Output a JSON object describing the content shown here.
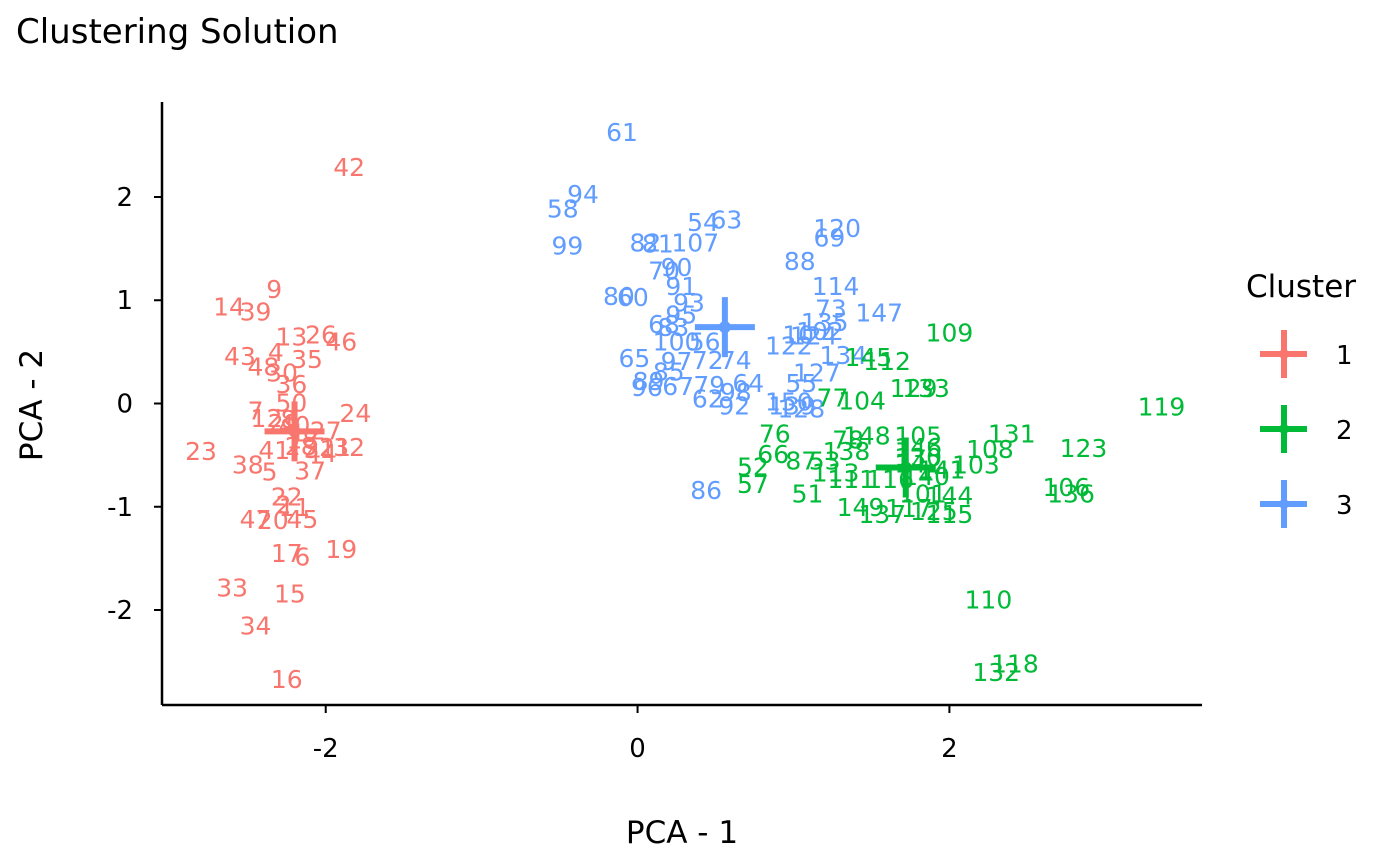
{
  "chart_data": {
    "type": "scatter",
    "title": "Clustering Solution",
    "xlabel": "PCA - 1",
    "ylabel": "PCA - 2",
    "xlim": [
      -3.05,
      3.62
    ],
    "ylim": [
      -2.92,
      2.92
    ],
    "xticks": [
      -2,
      0,
      2
    ],
    "yticks": [
      -2,
      -1,
      0,
      1,
      2
    ],
    "xtick_labels": [
      "-2",
      "0",
      "2"
    ],
    "ytick_labels": [
      "-2",
      "-1",
      "0",
      "1",
      "2"
    ],
    "grid": false,
    "legend": {
      "title": "Cluster",
      "position": "right",
      "entries": [
        "1",
        "2",
        "3"
      ]
    },
    "colors": {
      "1": "#F8766D",
      "2": "#00BA38",
      "3": "#619CFF"
    },
    "centroids": [
      {
        "cluster": "1",
        "x": -2.2,
        "y": -0.27
      },
      {
        "cluster": "2",
        "x": 1.72,
        "y": -0.62
      },
      {
        "cluster": "3",
        "x": 0.56,
        "y": 0.74
      }
    ],
    "points": [
      {
        "label": "42",
        "x": -1.85,
        "y": 2.29,
        "cluster": "1"
      },
      {
        "label": "9",
        "x": -2.33,
        "y": 1.11,
        "cluster": "1"
      },
      {
        "label": "14",
        "x": -2.62,
        "y": 0.94,
        "cluster": "1"
      },
      {
        "label": "39",
        "x": -2.45,
        "y": 0.89,
        "cluster": "1"
      },
      {
        "label": "13",
        "x": -2.22,
        "y": 0.65,
        "cluster": "1"
      },
      {
        "label": "26",
        "x": -2.03,
        "y": 0.67,
        "cluster": "1"
      },
      {
        "label": "46",
        "x": -1.9,
        "y": 0.6,
        "cluster": "1"
      },
      {
        "label": "43",
        "x": -2.55,
        "y": 0.46,
        "cluster": "1"
      },
      {
        "label": "4",
        "x": -2.32,
        "y": 0.5,
        "cluster": "1"
      },
      {
        "label": "35",
        "x": -2.12,
        "y": 0.43,
        "cluster": "1"
      },
      {
        "label": "48",
        "x": -2.4,
        "y": 0.36,
        "cluster": "1"
      },
      {
        "label": "30",
        "x": -2.28,
        "y": 0.3,
        "cluster": "1"
      },
      {
        "label": "36",
        "x": -2.22,
        "y": 0.19,
        "cluster": "1"
      },
      {
        "label": "7",
        "x": -2.45,
        "y": -0.07,
        "cluster": "1"
      },
      {
        "label": "50",
        "x": -2.22,
        "y": 0.01,
        "cluster": "1"
      },
      {
        "label": "24",
        "x": -1.81,
        "y": -0.09,
        "cluster": "1"
      },
      {
        "label": "12",
        "x": -2.38,
        "y": -0.14,
        "cluster": "1"
      },
      {
        "label": "8",
        "x": -2.24,
        "y": -0.15,
        "cluster": "1"
      },
      {
        "label": "40",
        "x": -2.2,
        "y": -0.21,
        "cluster": "1"
      },
      {
        "label": "29",
        "x": -2.27,
        "y": -0.19,
        "cluster": "1"
      },
      {
        "label": "27",
        "x": -2.0,
        "y": -0.26,
        "cluster": "1"
      },
      {
        "label": "1",
        "x": -2.18,
        "y": -0.28,
        "cluster": "1"
      },
      {
        "label": "18",
        "x": -2.15,
        "y": -0.35,
        "cluster": "1"
      },
      {
        "label": "28",
        "x": -2.16,
        "y": -0.41,
        "cluster": "1"
      },
      {
        "label": "41",
        "x": -2.33,
        "y": -0.45,
        "cluster": "1"
      },
      {
        "label": "31",
        "x": -2.04,
        "y": -0.44,
        "cluster": "1"
      },
      {
        "label": "21",
        "x": -1.94,
        "y": -0.42,
        "cluster": "1"
      },
      {
        "label": "32",
        "x": -1.85,
        "y": -0.42,
        "cluster": "1"
      },
      {
        "label": "44",
        "x": -2.03,
        "y": -0.48,
        "cluster": "1"
      },
      {
        "label": "23",
        "x": -2.8,
        "y": -0.46,
        "cluster": "1"
      },
      {
        "label": "38",
        "x": -2.5,
        "y": -0.59,
        "cluster": "1"
      },
      {
        "label": "5",
        "x": -2.36,
        "y": -0.66,
        "cluster": "1"
      },
      {
        "label": "37",
        "x": -2.1,
        "y": -0.65,
        "cluster": "1"
      },
      {
        "label": "22",
        "x": -2.25,
        "y": -0.9,
        "cluster": "1"
      },
      {
        "label": "2",
        "x": -2.27,
        "y": -0.98,
        "cluster": "1"
      },
      {
        "label": "11",
        "x": -2.2,
        "y": -1.0,
        "cluster": "1"
      },
      {
        "label": "47",
        "x": -2.45,
        "y": -1.12,
        "cluster": "1"
      },
      {
        "label": "20",
        "x": -2.34,
        "y": -1.13,
        "cluster": "1"
      },
      {
        "label": "45",
        "x": -2.15,
        "y": -1.12,
        "cluster": "1"
      },
      {
        "label": "19",
        "x": -1.9,
        "y": -1.41,
        "cluster": "1"
      },
      {
        "label": "17",
        "x": -2.25,
        "y": -1.45,
        "cluster": "1"
      },
      {
        "label": "6",
        "x": -2.15,
        "y": -1.48,
        "cluster": "1"
      },
      {
        "label": "33",
        "x": -2.6,
        "y": -1.78,
        "cluster": "1"
      },
      {
        "label": "15",
        "x": -2.23,
        "y": -1.84,
        "cluster": "1"
      },
      {
        "label": "34",
        "x": -2.45,
        "y": -2.15,
        "cluster": "1"
      },
      {
        "label": "16",
        "x": -2.25,
        "y": -2.67,
        "cluster": "1"
      },
      {
        "label": "61",
        "x": -0.1,
        "y": 2.63,
        "cluster": "3"
      },
      {
        "label": "94",
        "x": -0.35,
        "y": 2.03,
        "cluster": "3"
      },
      {
        "label": "58",
        "x": -0.48,
        "y": 1.89,
        "cluster": "3"
      },
      {
        "label": "99",
        "x": -0.45,
        "y": 1.53,
        "cluster": "3"
      },
      {
        "label": "54",
        "x": 0.42,
        "y": 1.76,
        "cluster": "3"
      },
      {
        "label": "63",
        "x": 0.57,
        "y": 1.78,
        "cluster": "3"
      },
      {
        "label": "82",
        "x": 0.05,
        "y": 1.56,
        "cluster": "3"
      },
      {
        "label": "81",
        "x": 0.13,
        "y": 1.55,
        "cluster": "3"
      },
      {
        "label": "107",
        "x": 0.37,
        "y": 1.56,
        "cluster": "3"
      },
      {
        "label": "120",
        "x": 1.28,
        "y": 1.7,
        "cluster": "3"
      },
      {
        "label": "69",
        "x": 1.23,
        "y": 1.61,
        "cluster": "3"
      },
      {
        "label": "88",
        "x": 1.04,
        "y": 1.38,
        "cluster": "3"
      },
      {
        "label": "70",
        "x": 0.17,
        "y": 1.29,
        "cluster": "3"
      },
      {
        "label": "90",
        "x": 0.25,
        "y": 1.32,
        "cluster": "3"
      },
      {
        "label": "114",
        "x": 1.27,
        "y": 1.14,
        "cluster": "3"
      },
      {
        "label": "91",
        "x": 0.28,
        "y": 1.14,
        "cluster": "3"
      },
      {
        "label": "80",
        "x": -0.12,
        "y": 1.04,
        "cluster": "3"
      },
      {
        "label": "60",
        "x": -0.03,
        "y": 1.03,
        "cluster": "3"
      },
      {
        "label": "93",
        "x": 0.33,
        "y": 0.98,
        "cluster": "3"
      },
      {
        "label": "73",
        "x": 1.24,
        "y": 0.92,
        "cluster": "3"
      },
      {
        "label": "147",
        "x": 1.55,
        "y": 0.88,
        "cluster": "3"
      },
      {
        "label": "68",
        "x": 0.17,
        "y": 0.77,
        "cluster": "3"
      },
      {
        "label": "83",
        "x": 0.23,
        "y": 0.74,
        "cluster": "3"
      },
      {
        "label": "95",
        "x": 0.28,
        "y": 0.86,
        "cluster": "3"
      },
      {
        "label": "135",
        "x": 1.2,
        "y": 0.79,
        "cluster": "3"
      },
      {
        "label": "124",
        "x": 1.13,
        "y": 0.66,
        "cluster": "3"
      },
      {
        "label": "10",
        "x": 1.03,
        "y": 0.67,
        "cluster": "3"
      },
      {
        "label": "102",
        "x": 1.17,
        "y": 0.7,
        "cluster": "3"
      },
      {
        "label": "100",
        "x": 0.25,
        "y": 0.6,
        "cluster": "3"
      },
      {
        "label": "56",
        "x": 0.43,
        "y": 0.6,
        "cluster": "3"
      },
      {
        "label": "122",
        "x": 0.97,
        "y": 0.56,
        "cluster": "3"
      },
      {
        "label": "65",
        "x": -0.02,
        "y": 0.44,
        "cluster": "3"
      },
      {
        "label": "97",
        "x": 0.25,
        "y": 0.41,
        "cluster": "3"
      },
      {
        "label": "72",
        "x": 0.45,
        "y": 0.42,
        "cluster": "3"
      },
      {
        "label": "74",
        "x": 0.63,
        "y": 0.42,
        "cluster": "3"
      },
      {
        "label": "134",
        "x": 1.32,
        "y": 0.47,
        "cluster": "3"
      },
      {
        "label": "85",
        "x": 0.2,
        "y": 0.31,
        "cluster": "3"
      },
      {
        "label": "89",
        "x": 0.07,
        "y": 0.22,
        "cluster": "3"
      },
      {
        "label": "96",
        "x": 0.06,
        "y": 0.16,
        "cluster": "3"
      },
      {
        "label": "67",
        "x": 0.26,
        "y": 0.17,
        "cluster": "3"
      },
      {
        "label": "79",
        "x": 0.46,
        "y": 0.18,
        "cluster": "3"
      },
      {
        "label": "62",
        "x": 0.45,
        "y": 0.05,
        "cluster": "3"
      },
      {
        "label": "98",
        "x": 0.63,
        "y": 0.11,
        "cluster": "3"
      },
      {
        "label": "64",
        "x": 0.71,
        "y": 0.2,
        "cluster": "3"
      },
      {
        "label": "127",
        "x": 1.15,
        "y": 0.3,
        "cluster": "3"
      },
      {
        "label": "55",
        "x": 1.05,
        "y": 0.2,
        "cluster": "3"
      },
      {
        "label": "92",
        "x": 0.62,
        "y": -0.02,
        "cluster": "3"
      },
      {
        "label": "150",
        "x": 0.97,
        "y": 0.02,
        "cluster": "3"
      },
      {
        "label": "139",
        "x": 0.99,
        "y": -0.02,
        "cluster": "3"
      },
      {
        "label": "128",
        "x": 1.05,
        "y": -0.05,
        "cluster": "3"
      },
      {
        "label": "86",
        "x": 0.44,
        "y": -0.84,
        "cluster": "3"
      },
      {
        "label": "109",
        "x": 2.0,
        "y": 0.69,
        "cluster": "2"
      },
      {
        "label": "145",
        "x": 1.48,
        "y": 0.45,
        "cluster": "2"
      },
      {
        "label": "112",
        "x": 1.6,
        "y": 0.41,
        "cluster": "2"
      },
      {
        "label": "129",
        "x": 1.77,
        "y": 0.15,
        "cluster": "2"
      },
      {
        "label": "133",
        "x": 1.85,
        "y": 0.15,
        "cluster": "2"
      },
      {
        "label": "104",
        "x": 1.44,
        "y": 0.03,
        "cluster": "2"
      },
      {
        "label": "77",
        "x": 1.25,
        "y": 0.06,
        "cluster": "2"
      },
      {
        "label": "119",
        "x": 3.36,
        "y": -0.03,
        "cluster": "2"
      },
      {
        "label": "131",
        "x": 2.4,
        "y": -0.29,
        "cluster": "2"
      },
      {
        "label": "123",
        "x": 2.86,
        "y": -0.43,
        "cluster": "2"
      },
      {
        "label": "148",
        "x": 1.47,
        "y": -0.31,
        "cluster": "2"
      },
      {
        "label": "78",
        "x": 1.35,
        "y": -0.35,
        "cluster": "2"
      },
      {
        "label": "105",
        "x": 1.8,
        "y": -0.31,
        "cluster": "2"
      },
      {
        "label": "138",
        "x": 1.34,
        "y": -0.46,
        "cluster": "2"
      },
      {
        "label": "146",
        "x": 1.8,
        "y": -0.42,
        "cluster": "2"
      },
      {
        "label": "108",
        "x": 2.26,
        "y": -0.44,
        "cluster": "2"
      },
      {
        "label": "76",
        "x": 0.88,
        "y": -0.29,
        "cluster": "2"
      },
      {
        "label": "66",
        "x": 0.87,
        "y": -0.49,
        "cluster": "2"
      },
      {
        "label": "87",
        "x": 1.05,
        "y": -0.55,
        "cluster": "2"
      },
      {
        "label": "53",
        "x": 1.2,
        "y": -0.55,
        "cluster": "2"
      },
      {
        "label": "130",
        "x": 1.8,
        "y": -0.52,
        "cluster": "2"
      },
      {
        "label": "142",
        "x": 1.8,
        "y": -0.58,
        "cluster": "2"
      },
      {
        "label": "103",
        "x": 2.17,
        "y": -0.59,
        "cluster": "2"
      },
      {
        "label": "52",
        "x": 0.74,
        "y": -0.61,
        "cluster": "2"
      },
      {
        "label": "113",
        "x": 1.27,
        "y": -0.67,
        "cluster": "2"
      },
      {
        "label": "111",
        "x": 1.37,
        "y": -0.73,
        "cluster": "2"
      },
      {
        "label": "116",
        "x": 1.62,
        "y": -0.73,
        "cluster": "2"
      },
      {
        "label": "140",
        "x": 1.85,
        "y": -0.7,
        "cluster": "2"
      },
      {
        "label": "141",
        "x": 1.95,
        "y": -0.64,
        "cluster": "2"
      },
      {
        "label": "57",
        "x": 0.74,
        "y": -0.78,
        "cluster": "2"
      },
      {
        "label": "106",
        "x": 2.75,
        "y": -0.81,
        "cluster": "2"
      },
      {
        "label": "136",
        "x": 2.78,
        "y": -0.87,
        "cluster": "2"
      },
      {
        "label": "51",
        "x": 1.09,
        "y": -0.87,
        "cluster": "2"
      },
      {
        "label": "101",
        "x": 1.83,
        "y": -0.87,
        "cluster": "2"
      },
      {
        "label": "144",
        "x": 2.0,
        "y": -0.89,
        "cluster": "2"
      },
      {
        "label": "149",
        "x": 1.43,
        "y": -1.0,
        "cluster": "2"
      },
      {
        "label": "137",
        "x": 1.57,
        "y": -1.07,
        "cluster": "2"
      },
      {
        "label": "117",
        "x": 1.74,
        "y": -1.01,
        "cluster": "2"
      },
      {
        "label": "125",
        "x": 1.9,
        "y": -1.04,
        "cluster": "2"
      },
      {
        "label": "115",
        "x": 2.0,
        "y": -1.07,
        "cluster": "2"
      },
      {
        "label": "110",
        "x": 2.25,
        "y": -1.9,
        "cluster": "2"
      },
      {
        "label": "118",
        "x": 2.42,
        "y": -2.52,
        "cluster": "2"
      },
      {
        "label": "132",
        "x": 2.3,
        "y": -2.6,
        "cluster": "2"
      }
    ]
  }
}
